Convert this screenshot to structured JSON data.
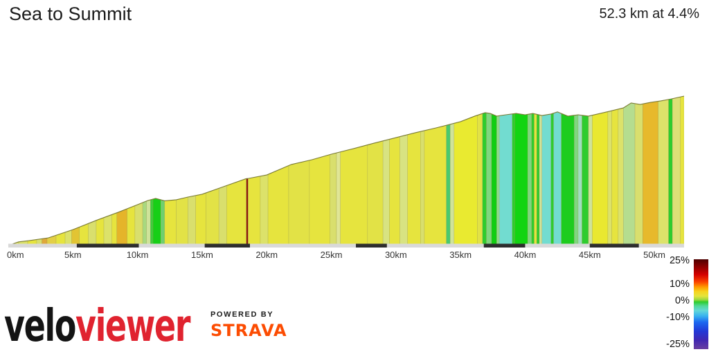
{
  "header": {
    "title": "Sea to Summit",
    "summary": "52.3 km at 4.4%"
  },
  "chart_data": {
    "type": "area",
    "title": "Sea to Summit",
    "distance_km": 52.3,
    "average_gradient_pct": 4.4,
    "x_range": [
      0,
      52.3
    ],
    "x_ticks": [
      {
        "km": 0,
        "label": "0km"
      },
      {
        "km": 5,
        "label": "5km"
      },
      {
        "km": 10,
        "label": "10km"
      },
      {
        "km": 15,
        "label": "15km"
      },
      {
        "km": 20,
        "label": "20km"
      },
      {
        "km": 25,
        "label": "25km"
      },
      {
        "km": 30,
        "label": "30km"
      },
      {
        "km": 35,
        "label": "35km"
      },
      {
        "km": 40,
        "label": "40km"
      },
      {
        "km": 45,
        "label": "45km"
      },
      {
        "km": 50,
        "label": "50km"
      }
    ],
    "profile": [
      [
        0,
        0
      ],
      [
        0.8,
        0.024
      ],
      [
        1.6,
        0.032
      ],
      [
        3.1,
        0.051
      ],
      [
        5,
        0.106
      ],
      [
        6.9,
        0.171
      ],
      [
        8.5,
        0.222
      ],
      [
        10,
        0.273
      ],
      [
        10.8,
        0.301
      ],
      [
        11.4,
        0.315
      ],
      [
        12.1,
        0.299
      ],
      [
        13,
        0.306
      ],
      [
        13.9,
        0.324
      ],
      [
        15,
        0.343
      ],
      [
        16.5,
        0.389
      ],
      [
        18.4,
        0.447
      ],
      [
        18.6,
        0.449
      ],
      [
        20,
        0.472
      ],
      [
        21.9,
        0.542
      ],
      [
        23.5,
        0.574
      ],
      [
        25,
        0.611
      ],
      [
        26.7,
        0.648
      ],
      [
        28.3,
        0.685
      ],
      [
        30,
        0.722
      ],
      [
        31.5,
        0.755
      ],
      [
        33.1,
        0.787
      ],
      [
        35,
        0.829
      ],
      [
        36.1,
        0.866
      ],
      [
        36.9,
        0.889
      ],
      [
        37.3,
        0.884
      ],
      [
        37.8,
        0.866
      ],
      [
        38.5,
        0.875
      ],
      [
        39.3,
        0.884
      ],
      [
        40,
        0.875
      ],
      [
        40.6,
        0.884
      ],
      [
        41.3,
        0.87
      ],
      [
        42,
        0.88
      ],
      [
        42.5,
        0.894
      ],
      [
        43.3,
        0.866
      ],
      [
        44.1,
        0.875
      ],
      [
        44.9,
        0.866
      ],
      [
        45.6,
        0.88
      ],
      [
        46.5,
        0.898
      ],
      [
        47.6,
        0.921
      ],
      [
        48.2,
        0.954
      ],
      [
        48.9,
        0.944
      ],
      [
        49.7,
        0.958
      ],
      [
        50.5,
        0.968
      ],
      [
        51.3,
        0.981
      ],
      [
        52.3,
        1
      ]
    ],
    "bands": [
      [
        0,
        0.8,
        "#e4e766"
      ],
      [
        0.8,
        1.5,
        "#dce26a"
      ],
      [
        1.5,
        2.2,
        "#e6e43e"
      ],
      [
        2.2,
        2.6,
        "#d9df6d"
      ],
      [
        2.6,
        3.0,
        "#dfa83b"
      ],
      [
        3.0,
        3.7,
        "#e3cf45"
      ],
      [
        3.7,
        4.4,
        "#e6e43e"
      ],
      [
        4.4,
        4.9,
        "#dce26a"
      ],
      [
        4.9,
        5.5,
        "#e2c433"
      ],
      [
        5.5,
        6.2,
        "#e6e43e"
      ],
      [
        6.2,
        6.8,
        "#d9df6d"
      ],
      [
        6.8,
        7.4,
        "#e6e43e"
      ],
      [
        7.4,
        8.0,
        "#dce26a"
      ],
      [
        8.0,
        8.4,
        "#e6e43e"
      ],
      [
        8.4,
        9.2,
        "#e5b42a"
      ],
      [
        9.2,
        9.8,
        "#e6e43e"
      ],
      [
        9.8,
        10.4,
        "#d9df6d"
      ],
      [
        10.4,
        10.7,
        "#a8d97f"
      ],
      [
        10.7,
        11.0,
        "#cfe39a"
      ],
      [
        11.0,
        11.2,
        "#3ecb3e"
      ],
      [
        11.2,
        11.8,
        "#17cf17"
      ],
      [
        11.8,
        12.1,
        "#6fcf6f"
      ],
      [
        12.1,
        13.0,
        "#e6e43e"
      ],
      [
        13.0,
        13.9,
        "#e2e246"
      ],
      [
        13.9,
        14.5,
        "#d9df6d"
      ],
      [
        14.5,
        15.3,
        "#e6e43e"
      ],
      [
        15.3,
        16.3,
        "#e2e246"
      ],
      [
        16.3,
        16.9,
        "#d9df6d"
      ],
      [
        16.9,
        18.42,
        "#e6e43e"
      ],
      [
        18.42,
        18.56,
        "#8b150c"
      ],
      [
        18.56,
        19.5,
        "#e6e43e"
      ],
      [
        19.5,
        20.1,
        "#dce26a"
      ],
      [
        20.1,
        21.7,
        "#e6e43e"
      ],
      [
        21.7,
        23.3,
        "#e2e246"
      ],
      [
        23.3,
        24.9,
        "#e6e43e"
      ],
      [
        24.9,
        25.4,
        "#d9df6d"
      ],
      [
        25.4,
        25.7,
        "#e0e696"
      ],
      [
        25.7,
        27.8,
        "#e6e43e"
      ],
      [
        27.8,
        29.0,
        "#e2e246"
      ],
      [
        29.0,
        29.5,
        "#d8e382"
      ],
      [
        29.5,
        30.3,
        "#e6e43e"
      ],
      [
        30.3,
        30.9,
        "#d8e382"
      ],
      [
        30.9,
        31.9,
        "#e6e43e"
      ],
      [
        31.9,
        32.2,
        "#d9df6d"
      ],
      [
        32.2,
        33.9,
        "#e6e43e"
      ],
      [
        33.9,
        34.2,
        "#49c96e"
      ],
      [
        34.2,
        34.5,
        "#cfe39a"
      ],
      [
        34.5,
        36.3,
        "#e9ea30"
      ],
      [
        36.3,
        36.7,
        "#e2e246"
      ],
      [
        36.7,
        37.0,
        "#2ecc2e"
      ],
      [
        37.0,
        37.4,
        "#7fd77f"
      ],
      [
        37.4,
        37.8,
        "#12cd12"
      ],
      [
        37.8,
        38.0,
        "#90dc90"
      ],
      [
        38.0,
        39.0,
        "#72dcd0"
      ],
      [
        39.0,
        39.2,
        "#2ecc2e"
      ],
      [
        39.2,
        40.2,
        "#12d412"
      ],
      [
        40.2,
        40.5,
        "#7fd77f"
      ],
      [
        40.5,
        40.7,
        "#2ecc2e"
      ],
      [
        40.7,
        40.9,
        "#e6e43e"
      ],
      [
        40.9,
        41.1,
        "#2ecc2e"
      ],
      [
        41.1,
        41.3,
        "#cfe39a"
      ],
      [
        41.3,
        42.0,
        "#72dcd0"
      ],
      [
        42.0,
        42.2,
        "#2ecc2e"
      ],
      [
        42.2,
        42.8,
        "#72dcd0"
      ],
      [
        42.8,
        43.8,
        "#1ecc1e"
      ],
      [
        43.8,
        44.1,
        "#7fd77f"
      ],
      [
        44.1,
        44.4,
        "#9fdfc0"
      ],
      [
        44.4,
        44.9,
        "#2ecc2e"
      ],
      [
        44.9,
        45.2,
        "#cfe39a"
      ],
      [
        45.2,
        46.4,
        "#e9e830"
      ],
      [
        46.4,
        46.7,
        "#dce26a"
      ],
      [
        46.7,
        47.2,
        "#e6e43e"
      ],
      [
        47.2,
        47.6,
        "#dce26a"
      ],
      [
        47.6,
        48.5,
        "#b5dd8f"
      ],
      [
        48.5,
        49.1,
        "#d9df6d"
      ],
      [
        49.1,
        50.3,
        "#e7b92c"
      ],
      [
        50.3,
        51.1,
        "#dce26a"
      ],
      [
        51.1,
        51.4,
        "#2ecc2e"
      ],
      [
        51.4,
        52.0,
        "#dde077"
      ],
      [
        52.0,
        52.3,
        "#e6e43e"
      ]
    ],
    "outline_color": "#7a7a33",
    "band_edge_color": "#98984a",
    "axis_bar": {
      "base_color": "#d9d9d9",
      "dark_color": "#2e2e2e",
      "dark_segments": [
        [
          5.3,
          10.1
        ],
        [
          15.2,
          18.7
        ],
        [
          26.9,
          29.3
        ],
        [
          36.8,
          40.0
        ],
        [
          45.0,
          48.8
        ]
      ]
    },
    "tick_label_color": "#333333",
    "legend": {
      "position": "bottom-right",
      "labels": [
        {
          "text": "25%",
          "pos": 0.015
        },
        {
          "text": "10%",
          "pos": 0.277
        },
        {
          "text": "0%",
          "pos": 0.462
        },
        {
          "text": "-10%",
          "pos": 0.646
        },
        {
          "text": "-25%",
          "pos": 0.946
        }
      ],
      "gradient_stops": [
        [
          0,
          "#4d0000"
        ],
        [
          0.08,
          "#8b0000"
        ],
        [
          0.17,
          "#d40000"
        ],
        [
          0.25,
          "#fa4000"
        ],
        [
          0.31,
          "#ff9d00"
        ],
        [
          0.36,
          "#f6d41f"
        ],
        [
          0.41,
          "#e4e43c"
        ],
        [
          0.45,
          "#9ed83e"
        ],
        [
          0.475,
          "#2ecc2e"
        ],
        [
          0.52,
          "#51d89a"
        ],
        [
          0.57,
          "#63d8d8"
        ],
        [
          0.63,
          "#39b3ef"
        ],
        [
          0.7,
          "#1c68f0"
        ],
        [
          0.8,
          "#2238d6"
        ],
        [
          0.9,
          "#4127b2"
        ],
        [
          1,
          "#6a3fa0"
        ]
      ],
      "label_color": "#111111"
    }
  },
  "footer": {
    "brand_black": "velo",
    "brand_red": "viewer",
    "brand_red_color": "#e0232f",
    "powered_by": "POWERED BY",
    "strava": "STRAVA",
    "strava_color": "#fc4c02"
  }
}
